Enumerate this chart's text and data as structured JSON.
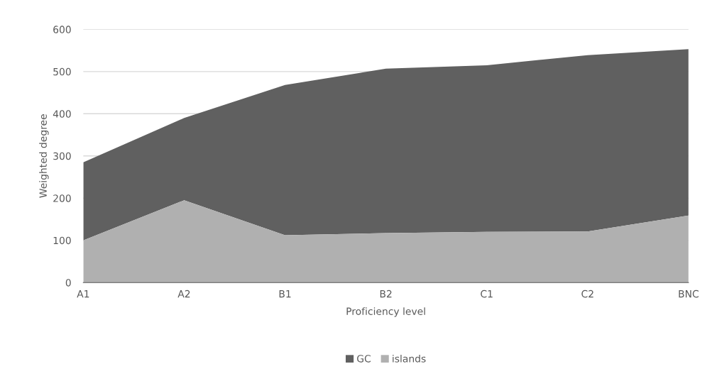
{
  "chart_data": {
    "type": "area",
    "xlabel": "Proficiency level",
    "ylabel": "Weighted degree",
    "categories": [
      "A1",
      "A2",
      "B1",
      "B2",
      "C1",
      "C2",
      "BNC"
    ],
    "series": [
      {
        "name": "GC",
        "color": "#606060",
        "values": [
          285,
          390,
          468,
          507,
          515,
          539,
          553
        ]
      },
      {
        "name": "islands",
        "color": "#b0b0b0",
        "values": [
          100,
          195,
          112,
          117,
          120,
          121,
          159
        ]
      }
    ],
    "ylim": [
      0,
      600
    ],
    "yticks": [
      0,
      100,
      200,
      300,
      400,
      500,
      600
    ],
    "grid": "y",
    "legend": "bottom"
  }
}
